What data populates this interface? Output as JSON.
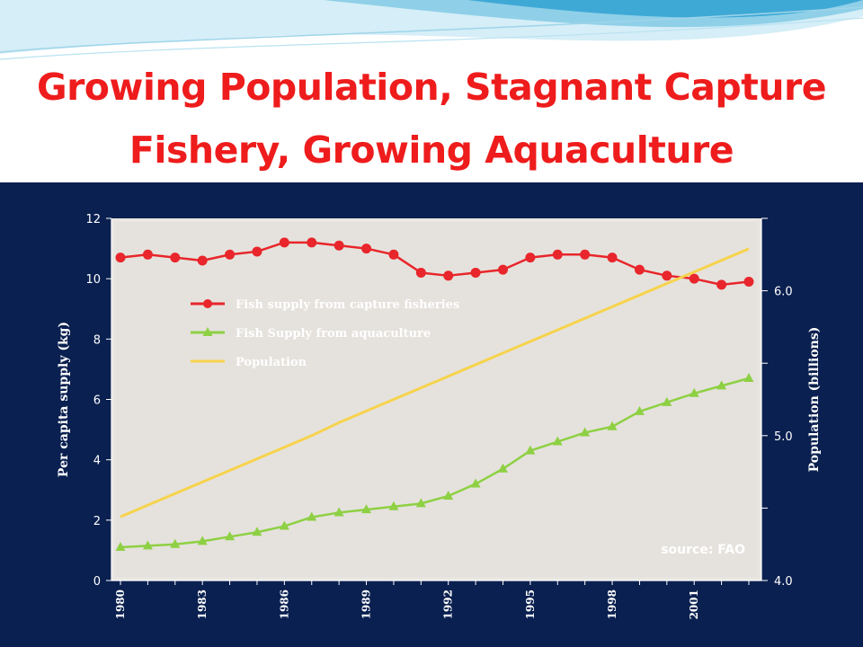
{
  "slide": {
    "title_line1": "Growing Population, Stagnant Capture",
    "title_line2": "Fishery, Growing Aquaculture"
  },
  "colors": {
    "title": "#ee1c1c",
    "panel_bg": "#0a2050",
    "capture": "#e8262b",
    "aquaculture": "#8ed043",
    "population": "#f7d34c"
  },
  "chart_data": {
    "type": "line",
    "x": [
      1980,
      1981,
      1982,
      1983,
      1984,
      1985,
      1986,
      1987,
      1988,
      1989,
      1990,
      1991,
      1992,
      1993,
      1994,
      1995,
      1996,
      1997,
      1998,
      1999,
      2000,
      2001,
      2002,
      2003
    ],
    "x_tick_labels": [
      "1980",
      "1983",
      "1986",
      "1989",
      "1992",
      "1995",
      "1998",
      "2001"
    ],
    "ylabel": "Per capita supply (kg)",
    "ylim": [
      0,
      12
    ],
    "y_ticks": [
      "0",
      "2",
      "4",
      "6",
      "8",
      "10",
      "12"
    ],
    "y2label": "Population (billions)",
    "y2lim": [
      4.0,
      6.5
    ],
    "y2_ticks": [
      "4.0",
      "5.0",
      "6.0"
    ],
    "series": [
      {
        "name": "Fish supply from capture fisheries",
        "axis": "left",
        "marker": "circle",
        "values": [
          10.7,
          10.8,
          10.7,
          10.6,
          10.8,
          10.9,
          11.2,
          11.2,
          11.1,
          11.0,
          10.8,
          10.2,
          10.1,
          10.2,
          10.3,
          10.7,
          10.8,
          10.8,
          10.7,
          10.3,
          10.1,
          10.0,
          9.8,
          9.9
        ]
      },
      {
        "name": "Fish Supply from aquaculture",
        "axis": "left",
        "marker": "triangle",
        "values": [
          1.1,
          1.15,
          1.2,
          1.3,
          1.45,
          1.6,
          1.8,
          2.1,
          2.25,
          2.35,
          2.45,
          2.55,
          2.8,
          3.2,
          3.7,
          4.3,
          4.6,
          4.9,
          5.1,
          5.6,
          5.9,
          6.2,
          6.45,
          6.7
        ]
      },
      {
        "name": "Population",
        "axis": "right",
        "marker": "none",
        "values": [
          4.44,
          4.52,
          4.6,
          4.68,
          4.76,
          4.84,
          4.92,
          5.0,
          5.09,
          5.17,
          5.25,
          5.33,
          5.41,
          5.49,
          5.57,
          5.65,
          5.73,
          5.81,
          5.89,
          5.97,
          6.05,
          6.13,
          6.21,
          6.29
        ]
      }
    ],
    "legend_position": "upper-left",
    "annotation": "source: FAO"
  }
}
